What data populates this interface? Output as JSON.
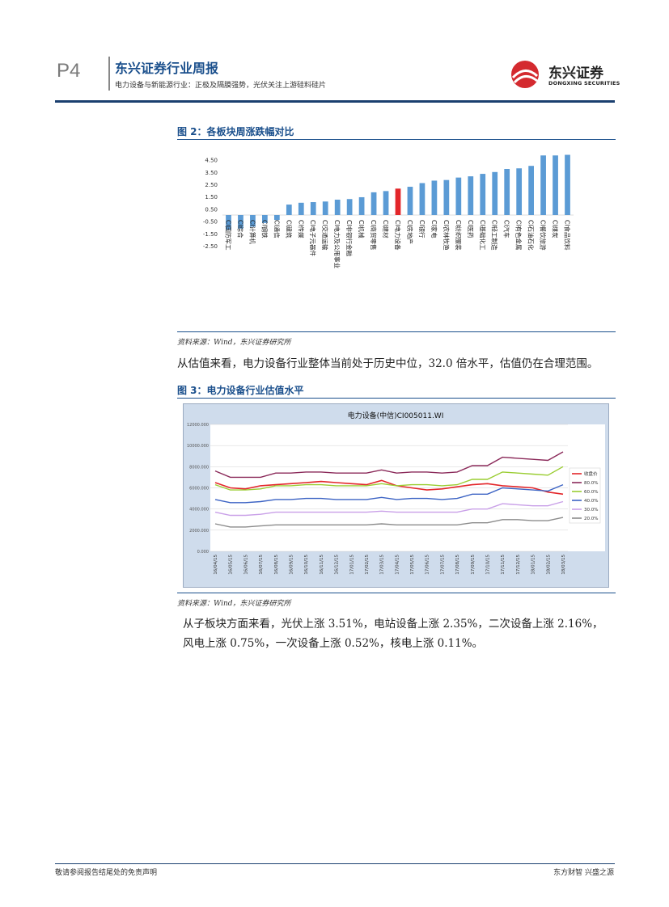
{
  "header": {
    "page_number": "P4",
    "series_title": "东兴证券行业周报",
    "subtitle": "电力设备与新能源行业：正极及隔膜强势，光伏关注上游硅料硅片",
    "logo_cn": "东兴证券",
    "logo_en": "DONGXING SECURITIES"
  },
  "figure2": {
    "title": "图 2：各板块周涨跌幅对比",
    "source": "资料来源：Wind，东兴证券研究所"
  },
  "paragraph1": "从估值来看，电力设备行业整体当前处于历史中位，32.0 倍水平，估值仍在合理范围。",
  "figure3": {
    "title": "图 3：电力设备行业估值水平",
    "source": "资料来源：Wind，东兴证券研究所"
  },
  "paragraph2_line1": "从子板块方面来看，光伏上涨 3.51%，电站设备上涨 2.35%，二次设备上涨 2.16%，",
  "paragraph2_line2": "风电上涨 0.75%，一次设备上涨 0.52%，核电上涨 0.11%。",
  "footer": {
    "left": "敬请参阅报告结尾处的免责声明",
    "right": "东方财智 兴盛之源"
  },
  "colors": {
    "brand": "#1a4f8c",
    "bar": "#5b9bd5",
    "bar_highlight": "#e3262a",
    "logo_red": "#d42a2f"
  },
  "chart_data": [
    {
      "type": "bar",
      "title": "图 2：各板块周涨跌幅对比",
      "categories": [
        "CI国防军工",
        "CI综合",
        "CI计算机",
        "CI钢铁",
        "CI通信",
        "CI建筑",
        "CI传媒",
        "CI电子元器件",
        "CI交通运输",
        "CI电力及公用事业",
        "CI非银行金融",
        "CI机械",
        "CI商贸零售",
        "CI建材",
        "CI电力设备",
        "CI房地产",
        "CI银行",
        "CI家电",
        "CI农林牧渔",
        "CI纺织服装",
        "CI医药",
        "CI基础化工",
        "CI轻工制造",
        "CI汽车",
        "CI有色金属",
        "CI石油石化",
        "CI餐饮旅游",
        "CI煤炭",
        "CI食品饮料"
      ],
      "values": [
        -1.2,
        -1.1,
        -0.95,
        -0.65,
        -0.4,
        0.85,
        1.0,
        1.05,
        1.1,
        1.25,
        1.3,
        1.45,
        1.85,
        1.95,
        2.15,
        2.3,
        2.6,
        2.8,
        2.85,
        3.05,
        3.15,
        3.35,
        3.5,
        3.75,
        3.8,
        4.0,
        4.85,
        4.85,
        4.9
      ],
      "highlight_index": 14,
      "ylim": [
        -2.5,
        5.0
      ],
      "yticks": [
        "4.50",
        "3.50",
        "2.50",
        "1.50",
        "0.50",
        "-0.50",
        "-1.50",
        "-2.50"
      ],
      "xlabel": "",
      "ylabel": ""
    },
    {
      "type": "line",
      "title": "电力设备(中信)CI005011.WI",
      "x_ticks": [
        "16/04/15",
        "16/05/15",
        "16/06/15",
        "16/07/15",
        "16/08/15",
        "16/09/15",
        "16/10/15",
        "16/11/15",
        "16/12/15",
        "17/01/15",
        "17/02/15",
        "17/03/15",
        "17/04/15",
        "17/05/15",
        "17/06/15",
        "17/07/15",
        "17/08/15",
        "17/09/15",
        "17/10/15",
        "17/11/15",
        "17/12/15",
        "18/01/15",
        "18/02/15",
        "18/03/15"
      ],
      "yticks": [
        "12000.000",
        "10000.000",
        "8000.000",
        "6000.000",
        "4000.000",
        "2000.000",
        "0.000"
      ],
      "ylim": [
        0,
        12000
      ],
      "series": [
        {
          "name": "收盘价",
          "color": "#e3262a",
          "values": [
            6500,
            6000,
            5900,
            6200,
            6300,
            6400,
            6500,
            6600,
            6500,
            6400,
            6300,
            6700,
            6200,
            6000,
            5800,
            5900,
            6100,
            6300,
            6400,
            6200,
            6100,
            6000,
            5600,
            5400
          ]
        },
        {
          "name": "80.0%",
          "color": "#8b2a5a",
          "values": [
            7600,
            7000,
            7000,
            7000,
            7400,
            7400,
            7500,
            7500,
            7400,
            7400,
            7400,
            7700,
            7400,
            7500,
            7500,
            7400,
            7500,
            8100,
            8100,
            8900,
            8800,
            8700,
            8600,
            9400
          ]
        },
        {
          "name": "60.0%",
          "color": "#9acd32",
          "values": [
            6300,
            5800,
            5800,
            5900,
            6200,
            6200,
            6300,
            6300,
            6200,
            6200,
            6200,
            6400,
            6200,
            6300,
            6300,
            6200,
            6300,
            6800,
            6800,
            7500,
            7400,
            7300,
            7200,
            8000
          ]
        },
        {
          "name": "40.0%",
          "color": "#3c63c4",
          "values": [
            4900,
            4600,
            4600,
            4700,
            4900,
            4900,
            5000,
            5000,
            4900,
            4900,
            4900,
            5100,
            4900,
            5000,
            5000,
            4900,
            5000,
            5400,
            5400,
            6000,
            5900,
            5800,
            5700,
            6300
          ]
        },
        {
          "name": "30.0%",
          "color": "#c9a0e8",
          "values": [
            3700,
            3400,
            3400,
            3500,
            3700,
            3700,
            3700,
            3700,
            3700,
            3700,
            3700,
            3800,
            3700,
            3700,
            3700,
            3700,
            3700,
            4000,
            4000,
            4500,
            4400,
            4300,
            4300,
            4700
          ]
        },
        {
          "name": "20.0%",
          "color": "#8c8c8c",
          "values": [
            2600,
            2300,
            2300,
            2400,
            2500,
            2500,
            2500,
            2500,
            2500,
            2500,
            2500,
            2600,
            2500,
            2500,
            2500,
            2500,
            2500,
            2700,
            2700,
            3000,
            3000,
            2900,
            2900,
            3200
          ]
        }
      ],
      "legend_position": "right"
    }
  ]
}
